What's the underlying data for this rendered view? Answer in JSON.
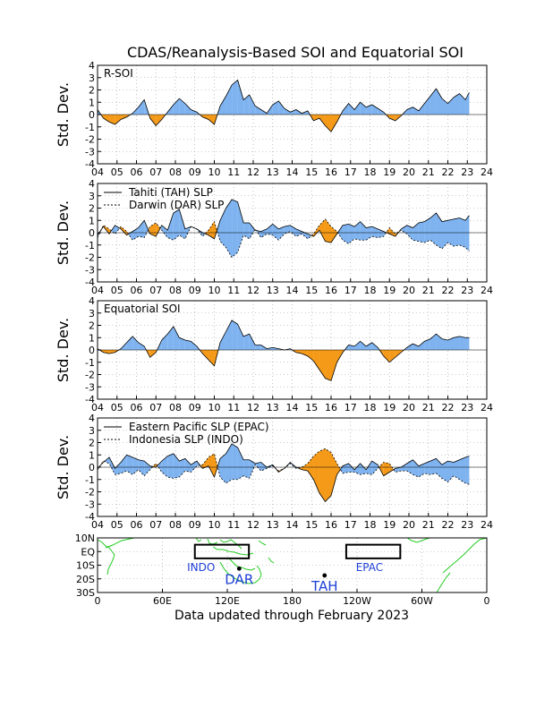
{
  "title": "CDAS/Reanalysis-Based SOI and Equatorial SOI",
  "footer": "Data updated through February 2023",
  "colors": {
    "positive": "#7eb3f0",
    "negative": "#f59a18",
    "land": "#22cc22",
    "grid": "#9a9a9a"
  },
  "chart_data": [
    {
      "type": "area",
      "label": "R-SOI",
      "ylabel": "Std. Dev.",
      "ylim": [
        -4,
        4
      ],
      "yticks": [
        4,
        3,
        2,
        1,
        0,
        -1,
        -2,
        -3,
        -4
      ],
      "xticks": [
        "04",
        "05",
        "06",
        "07",
        "08",
        "09",
        "10",
        "11",
        "12",
        "13",
        "14",
        "15",
        "16",
        "17",
        "18",
        "19",
        "20",
        "21",
        "22",
        "23",
        "24"
      ],
      "grid": true,
      "x": [
        2004.0,
        2004.3,
        2004.6,
        2004.9,
        2005.2,
        2005.5,
        2005.8,
        2006.1,
        2006.4,
        2006.7,
        2007.0,
        2007.3,
        2007.6,
        2007.9,
        2008.2,
        2008.5,
        2008.8,
        2009.1,
        2009.4,
        2009.7,
        2010.0,
        2010.3,
        2010.6,
        2010.9,
        2011.2,
        2011.5,
        2011.8,
        2012.1,
        2012.4,
        2012.7,
        2013.0,
        2013.3,
        2013.6,
        2013.9,
        2014.2,
        2014.5,
        2014.8,
        2015.1,
        2015.4,
        2015.7,
        2016.0,
        2016.3,
        2016.6,
        2016.9,
        2017.2,
        2017.5,
        2017.8,
        2018.1,
        2018.4,
        2018.7,
        2019.0,
        2019.3,
        2019.6,
        2019.9,
        2020.2,
        2020.5,
        2020.8,
        2021.1,
        2021.4,
        2021.7,
        2022.0,
        2022.3,
        2022.6,
        2022.9,
        2023.1
      ],
      "y": [
        0.4,
        -0.3,
        -0.6,
        -0.8,
        -0.4,
        -0.2,
        0.1,
        0.6,
        1.2,
        -0.3,
        -0.9,
        -0.4,
        0.2,
        0.8,
        1.3,
        0.9,
        0.4,
        0.2,
        -0.2,
        -0.4,
        -0.8,
        0.7,
        1.5,
        2.4,
        2.8,
        1.2,
        1.6,
        0.7,
        0.4,
        0.1,
        0.8,
        1.1,
        0.5,
        0.2,
        0.4,
        0.1,
        0.3,
        -0.5,
        -0.3,
        -0.9,
        -1.4,
        -0.6,
        0.3,
        0.9,
        0.4,
        1.0,
        0.6,
        0.8,
        0.5,
        0.2,
        -0.3,
        -0.5,
        -0.1,
        0.4,
        0.6,
        0.3,
        0.9,
        1.5,
        2.1,
        1.3,
        0.9,
        1.4,
        1.7,
        1.2,
        1.8
      ],
      "bands": false
    },
    {
      "type": "area",
      "series": [
        {
          "name": "Tahiti (TAH) SLP",
          "values": [
            -0.2,
            0.5,
            -0.1,
            0.6,
            0.3,
            -0.2,
            0.1,
            0.4,
            1.0,
            -0.1,
            -0.3,
            0.6,
            0.2,
            1.6,
            1.9,
            0.3,
            0.5,
            0.3,
            0.0,
            -0.2,
            -0.5,
            1.0,
            2.0,
            2.7,
            2.5,
            0.8,
            0.8,
            0.2,
            0.1,
            0.3,
            0.7,
            0.3,
            0.5,
            0.6,
            0.3,
            0.1,
            -0.1,
            -0.3,
            0.2,
            -0.7,
            -0.8,
            -0.1,
            0.6,
            0.7,
            0.5,
            0.9,
            0.4,
            0.5,
            0.3,
            0.1,
            -0.1,
            -0.3,
            0.3,
            0.6,
            0.4,
            0.8,
            0.9,
            1.2,
            1.6,
            0.9,
            1.0,
            1.1,
            1.2,
            1.0,
            1.4
          ]
        },
        {
          "name": "Darwin (DAR) SLP",
          "values": [
            -0.4,
            0.6,
            0.3,
            -0.1,
            0.5,
            0.1,
            -0.6,
            -0.3,
            -0.4,
            0.5,
            0.8,
            0.2,
            -0.4,
            -0.6,
            -0.2,
            -0.5,
            0.5,
            0.3,
            -0.3,
            0.2,
            0.9,
            -0.7,
            -1.2,
            -2.0,
            -1.6,
            -0.2,
            -0.5,
            0.3,
            -0.4,
            -0.1,
            -0.2,
            -0.6,
            -0.1,
            0.1,
            -0.3,
            -0.1,
            -0.5,
            -0.1,
            0.6,
            1.1,
            0.5,
            0.1,
            -0.6,
            -0.9,
            -0.5,
            -0.6,
            -0.6,
            -0.3,
            -0.4,
            -0.3,
            0.4,
            -0.1,
            0.2,
            -0.1,
            -0.6,
            -0.7,
            -0.8,
            -0.6,
            -1.0,
            -1.3,
            -0.8,
            -1.1,
            -1.0,
            -1.2,
            -1.5
          ]
        }
      ],
      "ylabel": "Std. Dev.",
      "ylim": [
        -4,
        4
      ],
      "bands": true
    },
    {
      "type": "area",
      "label": "Equatorial SOI",
      "ylabel": "Std. Dev.",
      "ylim": [
        -4,
        4
      ],
      "y": [
        0.1,
        -0.2,
        -0.3,
        -0.2,
        0.1,
        0.6,
        1.1,
        0.6,
        0.3,
        -0.6,
        -0.2,
        0.8,
        1.3,
        1.9,
        1.0,
        0.8,
        0.7,
        0.3,
        -0.3,
        -0.8,
        -1.3,
        0.6,
        1.5,
        2.4,
        2.1,
        1.1,
        1.3,
        0.4,
        0.4,
        0.1,
        0.2,
        0.1,
        0.0,
        0.1,
        -0.2,
        -0.3,
        -0.5,
        -0.9,
        -1.6,
        -2.3,
        -2.5,
        -1.0,
        -0.2,
        0.4,
        0.3,
        0.7,
        0.3,
        0.6,
        0.2,
        -0.5,
        -1.0,
        -0.6,
        -0.2,
        0.2,
        0.5,
        0.3,
        0.7,
        0.9,
        1.3,
        0.9,
        0.8,
        1.0,
        1.1,
        1.0,
        1.0
      ],
      "bands": false
    },
    {
      "type": "area",
      "series": [
        {
          "name": "Eastern Pacific SLP (EPAC)",
          "values": [
            -0.1,
            0.4,
            0.8,
            -0.1,
            0.4,
            1.0,
            0.8,
            0.6,
            0.5,
            0.1,
            0.0,
            0.5,
            0.9,
            1.1,
            0.5,
            0.7,
            0.2,
            0.5,
            -0.1,
            0.1,
            -0.8,
            0.7,
            1.1,
            1.9,
            1.6,
            0.6,
            0.6,
            0.3,
            0.4,
            0.0,
            0.2,
            -0.4,
            -0.1,
            0.4,
            0.0,
            -0.2,
            -0.3,
            -1.0,
            -2.1,
            -2.8,
            -2.3,
            -0.6,
            0.1,
            0.3,
            -0.2,
            0.3,
            -0.2,
            0.5,
            0.2,
            -0.7,
            -0.4,
            -0.1,
            0.0,
            0.3,
            0.6,
            0.1,
            0.3,
            0.5,
            0.7,
            0.2,
            0.5,
            0.4,
            0.6,
            0.8,
            0.9
          ]
        },
        {
          "name": "Indonesia SLP (INDO)",
          "values": [
            -0.2,
            0.5,
            0.3,
            -0.6,
            -0.5,
            -0.3,
            -0.6,
            -0.2,
            -0.7,
            -0.2,
            0.3,
            -0.4,
            -0.8,
            -0.9,
            -0.8,
            -0.3,
            -0.4,
            0.1,
            0.2,
            0.8,
            1.1,
            -0.8,
            -1.3,
            -1.0,
            -1.0,
            -0.7,
            -0.9,
            0.2,
            -0.3,
            -0.1,
            0.1,
            -0.3,
            -0.1,
            0.3,
            -0.1,
            0.0,
            0.3,
            0.9,
            1.3,
            1.5,
            1.2,
            0.3,
            -0.5,
            -0.4,
            -0.4,
            -0.6,
            -0.5,
            -0.6,
            -0.1,
            0.4,
            0.3,
            -0.4,
            -0.3,
            -0.3,
            -0.6,
            -0.8,
            -0.5,
            -0.6,
            -0.5,
            -0.9,
            -1.2,
            -0.7,
            -1.0,
            -1.3,
            -1.4
          ]
        }
      ],
      "ylabel": "Std. Dev.",
      "ylim": [
        -4,
        4
      ],
      "bands": true
    },
    {
      "type": "map",
      "yticks": [
        "10N",
        "EQ",
        "10S",
        "20S",
        "30S"
      ],
      "xticks": [
        "0",
        "60E",
        "120E",
        "180",
        "120W",
        "60W",
        "0"
      ],
      "boxes": [
        {
          "name": "INDO",
          "lon": [
            90,
            140
          ],
          "lat": [
            -5,
            5
          ]
        },
        {
          "name": "EPAC",
          "lon": [
            230,
            280
          ],
          "lat": [
            -5,
            5
          ]
        }
      ],
      "stations": [
        {
          "name": "DAR",
          "lon": 131,
          "lat": -12.5
        },
        {
          "name": "TAH",
          "lon": 210,
          "lat": -17.5
        }
      ]
    }
  ]
}
